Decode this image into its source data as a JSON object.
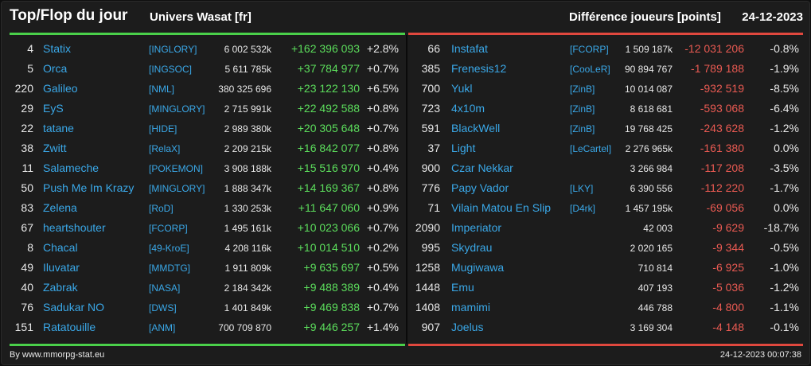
{
  "header": {
    "title": "Top/Flop du jour",
    "universe": "Univers Wasat [fr]",
    "diff_label": "Différence joueurs [points]",
    "date": "24-12-2023"
  },
  "colors": {
    "top_accent": "#4ad04a",
    "flop_accent": "#e0483e",
    "link": "#3aa8e8",
    "positive": "#5cde5c",
    "negative": "#ea5a52"
  },
  "top": [
    {
      "rank": "4",
      "name": "Statix",
      "alliance": "[INGLORY]",
      "points": "6 002 532k",
      "delta": "+162 396 093",
      "pct": "+2.8%"
    },
    {
      "rank": "5",
      "name": "Orca",
      "alliance": "[INGSOC]",
      "points": "5 611 785k",
      "delta": "+37 784 977",
      "pct": "+0.7%"
    },
    {
      "rank": "220",
      "name": "Galileo",
      "alliance": "[NML]",
      "points": "380 325 696",
      "delta": "+23 122 130",
      "pct": "+6.5%"
    },
    {
      "rank": "29",
      "name": "EyS",
      "alliance": "[MINGLORY]",
      "points": "2 715 991k",
      "delta": "+22 492 588",
      "pct": "+0.8%"
    },
    {
      "rank": "22",
      "name": "tatane",
      "alliance": "[HIDE]",
      "points": "2 989 380k",
      "delta": "+20 305 648",
      "pct": "+0.7%"
    },
    {
      "rank": "38",
      "name": "Zwitt",
      "alliance": "[RelaX]",
      "points": "2 209 215k",
      "delta": "+16 842 077",
      "pct": "+0.8%"
    },
    {
      "rank": "11",
      "name": "Salameche",
      "alliance": "[POKEMON]",
      "points": "3 908 188k",
      "delta": "+15 516 970",
      "pct": "+0.4%"
    },
    {
      "rank": "50",
      "name": "Push Me Im Krazy",
      "alliance": "[MINGLORY]",
      "points": "1 888 347k",
      "delta": "+14 169 367",
      "pct": "+0.8%"
    },
    {
      "rank": "83",
      "name": "Zelena",
      "alliance": "[RoD]",
      "points": "1 330 253k",
      "delta": "+11 647 060",
      "pct": "+0.9%"
    },
    {
      "rank": "67",
      "name": "heartshouter",
      "alliance": "[FCORP]",
      "points": "1 495 161k",
      "delta": "+10 023 066",
      "pct": "+0.7%"
    },
    {
      "rank": "8",
      "name": "Chacal",
      "alliance": "[49-KroE]",
      "points": "4 208 116k",
      "delta": "+10 014 510",
      "pct": "+0.2%"
    },
    {
      "rank": "49",
      "name": "Iluvatar",
      "alliance": "[MMDTG]",
      "points": "1 911 809k",
      "delta": "+9 635 697",
      "pct": "+0.5%"
    },
    {
      "rank": "40",
      "name": "Zabrak",
      "alliance": "[NASA]",
      "points": "2 184 342k",
      "delta": "+9 488 389",
      "pct": "+0.4%"
    },
    {
      "rank": "76",
      "name": "Sadukar NO",
      "alliance": "[DWS]",
      "points": "1 401 849k",
      "delta": "+9 469 838",
      "pct": "+0.7%"
    },
    {
      "rank": "151",
      "name": "Ratatouille",
      "alliance": "[ANM]",
      "points": "700 709 870",
      "delta": "+9 446 257",
      "pct": "+1.4%"
    }
  ],
  "flop": [
    {
      "rank": "66",
      "name": "Instafat",
      "alliance": "[FCORP]",
      "points": "1 509 187k",
      "delta": "-12 031 206",
      "pct": "-0.8%"
    },
    {
      "rank": "385",
      "name": "Frenesis12",
      "alliance": "[CooLeR]",
      "points": "90 894 767",
      "delta": "-1 789 188",
      "pct": "-1.9%"
    },
    {
      "rank": "700",
      "name": "Yukl",
      "alliance": "[ZinB]",
      "points": "10 014 087",
      "delta": "-932 519",
      "pct": "-8.5%"
    },
    {
      "rank": "723",
      "name": "4x10m",
      "alliance": "[ZinB]",
      "points": "8 618 681",
      "delta": "-593 068",
      "pct": "-6.4%"
    },
    {
      "rank": "591",
      "name": "BlackWell",
      "alliance": "[ZinB]",
      "points": "19 768 425",
      "delta": "-243 628",
      "pct": "-1.2%"
    },
    {
      "rank": "37",
      "name": "Light",
      "alliance": "[LeCartel]",
      "points": "2 276 965k",
      "delta": "-161 380",
      "pct": "0.0%"
    },
    {
      "rank": "900",
      "name": "Czar Nekkar",
      "alliance": "",
      "points": "3 266 984",
      "delta": "-117 208",
      "pct": "-3.5%"
    },
    {
      "rank": "776",
      "name": "Papy Vador",
      "alliance": "[LKY]",
      "points": "6 390 556",
      "delta": "-112 220",
      "pct": "-1.7%"
    },
    {
      "rank": "71",
      "name": "Vilain Matou En Slip",
      "alliance": "[D4rk]",
      "points": "1 457 195k",
      "delta": "-69 056",
      "pct": "0.0%"
    },
    {
      "rank": "2090",
      "name": "Imperiator",
      "alliance": "",
      "points": "42 003",
      "delta": "-9 629",
      "pct": "-18.7%"
    },
    {
      "rank": "995",
      "name": "Skydrau",
      "alliance": "",
      "points": "2 020 165",
      "delta": "-9 344",
      "pct": "-0.5%"
    },
    {
      "rank": "1258",
      "name": "Mugiwawa",
      "alliance": "",
      "points": "710 814",
      "delta": "-6 925",
      "pct": "-1.0%"
    },
    {
      "rank": "1448",
      "name": "Emu",
      "alliance": "",
      "points": "407 193",
      "delta": "-5 036",
      "pct": "-1.2%"
    },
    {
      "rank": "1408",
      "name": "mamimi",
      "alliance": "",
      "points": "446 788",
      "delta": "-4 800",
      "pct": "-1.1%"
    },
    {
      "rank": "907",
      "name": "Joelus",
      "alliance": "",
      "points": "3 169 304",
      "delta": "-4 148",
      "pct": "-0.1%"
    }
  ],
  "footer": {
    "credit": "By www.mmorpg-stat.eu",
    "timestamp": "24-12-2023 00:07:38"
  }
}
